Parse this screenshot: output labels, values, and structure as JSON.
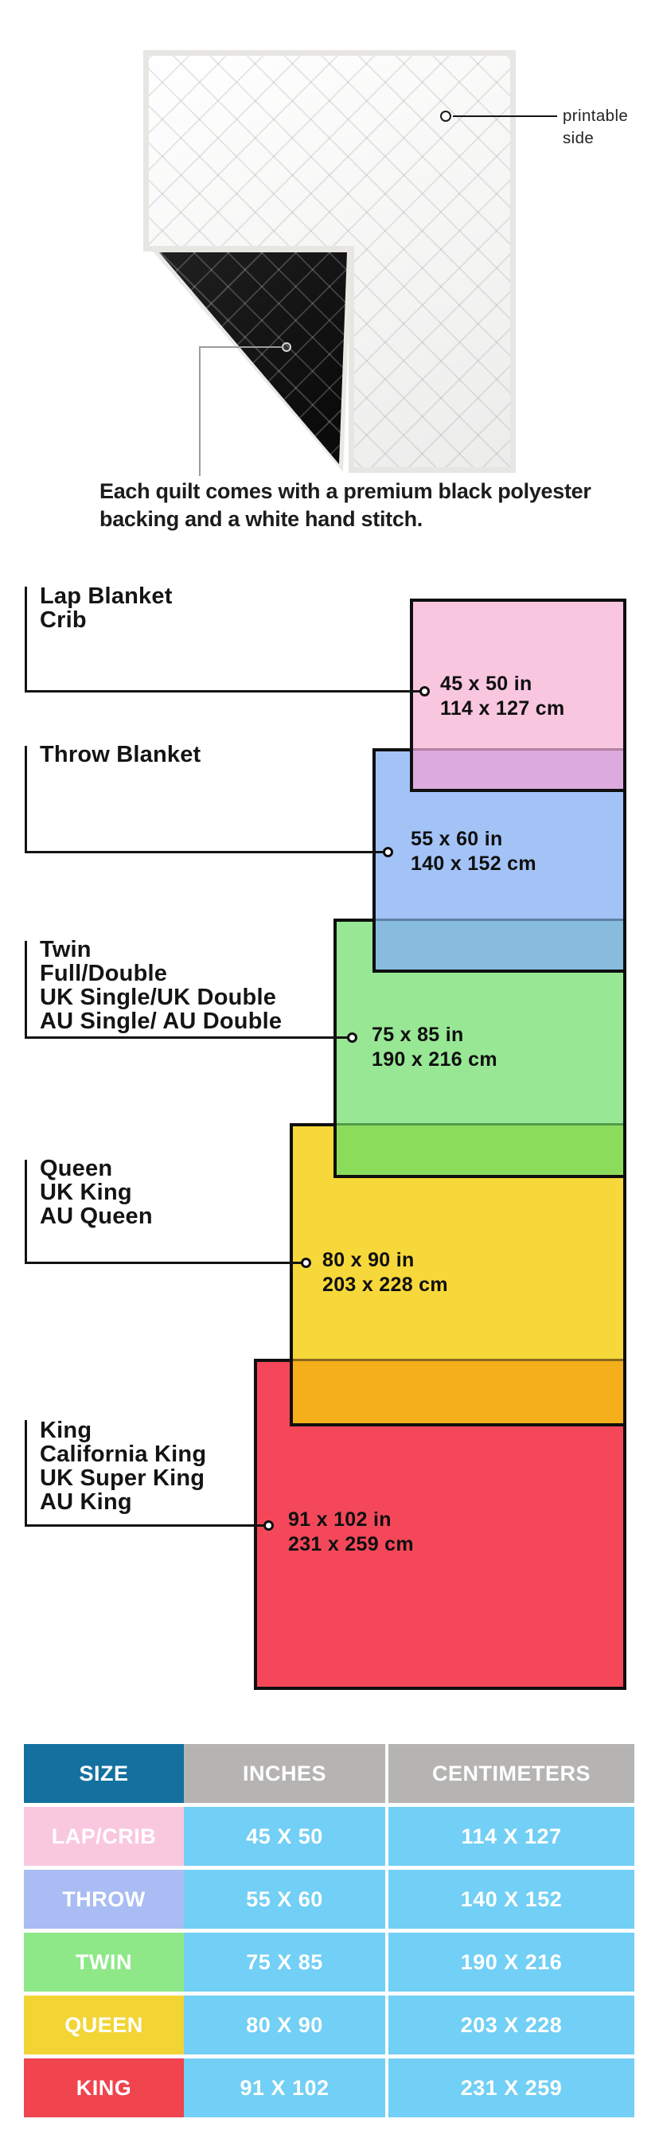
{
  "quilt_section": {
    "printable_label_line1": "printable",
    "printable_label_line2": "side",
    "caption_line1": "Each quilt comes with a premium black polyester",
    "caption_line2": "backing and a white hand stitch."
  },
  "diagram": {
    "sizes": [
      {
        "id": "lap",
        "labels": [
          "Lap Blanket",
          "Crib"
        ],
        "inches": "45 x 50 in",
        "cm": "114 x 127 cm",
        "fill": "#F9C6E0",
        "band": "#DCAADE",
        "band_line": "#B3809F"
      },
      {
        "id": "throw",
        "labels": [
          "Throw Blanket"
        ],
        "inches": "55 x 60 in",
        "cm": "140 x 152 cm",
        "fill": "#A3C3F7",
        "band": "#87BCDF",
        "band_line": "#5E80A6"
      },
      {
        "id": "twin",
        "labels": [
          "Twin",
          "Full/Double",
          "UK Single/UK Double",
          "AU Single/ AU Double"
        ],
        "inches": "75 x 85 in",
        "cm": "190 x 216 cm",
        "fill": "#98E795",
        "band": "#8CDC5C",
        "band_line": "#4F9D49"
      },
      {
        "id": "queen",
        "labels": [
          "Queen",
          "UK King",
          "AU Queen"
        ],
        "inches": "80 x 90 in",
        "cm": "203 x 228 cm",
        "fill": "#F6D83A",
        "band": "#F4AF1B",
        "band_line": "#8A681E"
      },
      {
        "id": "king",
        "labels": [
          "King",
          "California King",
          "UK Super King",
          "AU King"
        ],
        "inches": "91 x 102 in",
        "cm": "231 x 259 cm",
        "fill": "#F4485A",
        "band": null,
        "band_line": null
      }
    ]
  },
  "table": {
    "headers": {
      "size": "SIZE",
      "inches": "INCHES",
      "cm": "CENTIMETERS"
    },
    "header_colors": {
      "size_bg": "#14719F",
      "other_bg": "#B5B4B3"
    },
    "data_bg": "#72CFF5",
    "rows": [
      {
        "size": "LAP/CRIB",
        "inches": "45 X 50",
        "cm": "114 X 127",
        "color": "#F9C8DF"
      },
      {
        "size": "THROW",
        "inches": "55 X 60",
        "cm": "140 X 152",
        "color": "#A9BCF3"
      },
      {
        "size": "TWIN",
        "inches": "75 X 85",
        "cm": "190 X 216",
        "color": "#8EE888"
      },
      {
        "size": "QUEEN",
        "inches": "80 X 90",
        "cm": "203 X 228",
        "color": "#F3D435"
      },
      {
        "size": "KING",
        "inches": "91 X 102",
        "cm": "231 X 259",
        "color": "#F0444F"
      }
    ]
  }
}
